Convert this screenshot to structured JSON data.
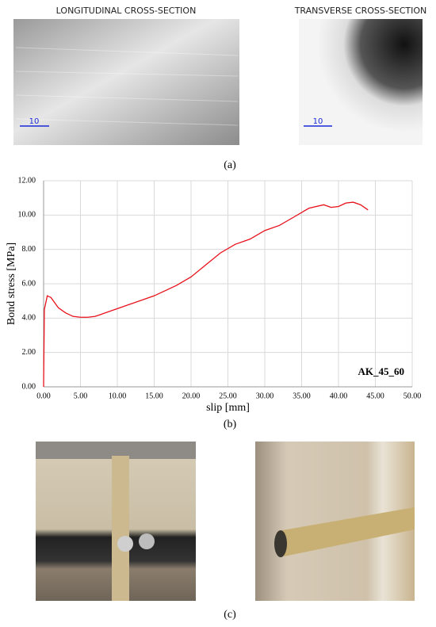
{
  "panel_a": {
    "left_label": "LONGITUDINAL CROSS-SECTION",
    "right_label": "TRANSVERSE CROSS-SECTION",
    "left_scale": "10",
    "right_scale": "10",
    "caption": "(a)"
  },
  "chart_data": {
    "type": "line",
    "xlabel": "slip [mm]",
    "ylabel": "Bond stress [MPa]",
    "annotation": "AK_45_60",
    "x": [
      0,
      0.1,
      0.5,
      1,
      2,
      3,
      4,
      5,
      6,
      7,
      8,
      10,
      12,
      15,
      18,
      20,
      22,
      24,
      26,
      28,
      30,
      32,
      34,
      36,
      38,
      39,
      40,
      41,
      42,
      43,
      44
    ],
    "series": [
      {
        "name": "AK_45_60",
        "color": "#e8101a",
        "values": [
          0,
          4.5,
          5.3,
          5.2,
          4.6,
          4.3,
          4.1,
          4.05,
          4.05,
          4.1,
          4.25,
          4.55,
          4.85,
          5.3,
          5.9,
          6.4,
          7.1,
          7.8,
          8.3,
          8.6,
          9.1,
          9.4,
          9.9,
          10.4,
          10.6,
          10.45,
          10.5,
          10.7,
          10.75,
          10.6,
          10.3
        ]
      }
    ],
    "xlim": [
      0,
      50
    ],
    "ylim": [
      0,
      12
    ],
    "xticks": [
      {
        "value": 0,
        "label": "0.00"
      },
      {
        "value": 5,
        "label": "5.00"
      },
      {
        "value": 10,
        "label": "10.00"
      },
      {
        "value": 15,
        "label": "15.00"
      },
      {
        "value": 20,
        "label": "20.00"
      },
      {
        "value": 25,
        "label": "25.00"
      },
      {
        "value": 30,
        "label": "30.00"
      },
      {
        "value": 35,
        "label": "35.00"
      },
      {
        "value": 40,
        "label": "40.00"
      },
      {
        "value": 45,
        "label": "45.00"
      },
      {
        "value": 50,
        "label": "50.00"
      }
    ],
    "yticks": [
      {
        "value": 0,
        "label": "0.00"
      },
      {
        "value": 2,
        "label": "2.00"
      },
      {
        "value": 4,
        "label": "4.00"
      },
      {
        "value": 6,
        "label": "6.00"
      },
      {
        "value": 8,
        "label": "8.00"
      },
      {
        "value": 10,
        "label": "10.00"
      },
      {
        "value": 12,
        "label": "12.00"
      }
    ],
    "grid": true,
    "caption": "(b)"
  },
  "panel_c": {
    "caption": "(c)"
  }
}
